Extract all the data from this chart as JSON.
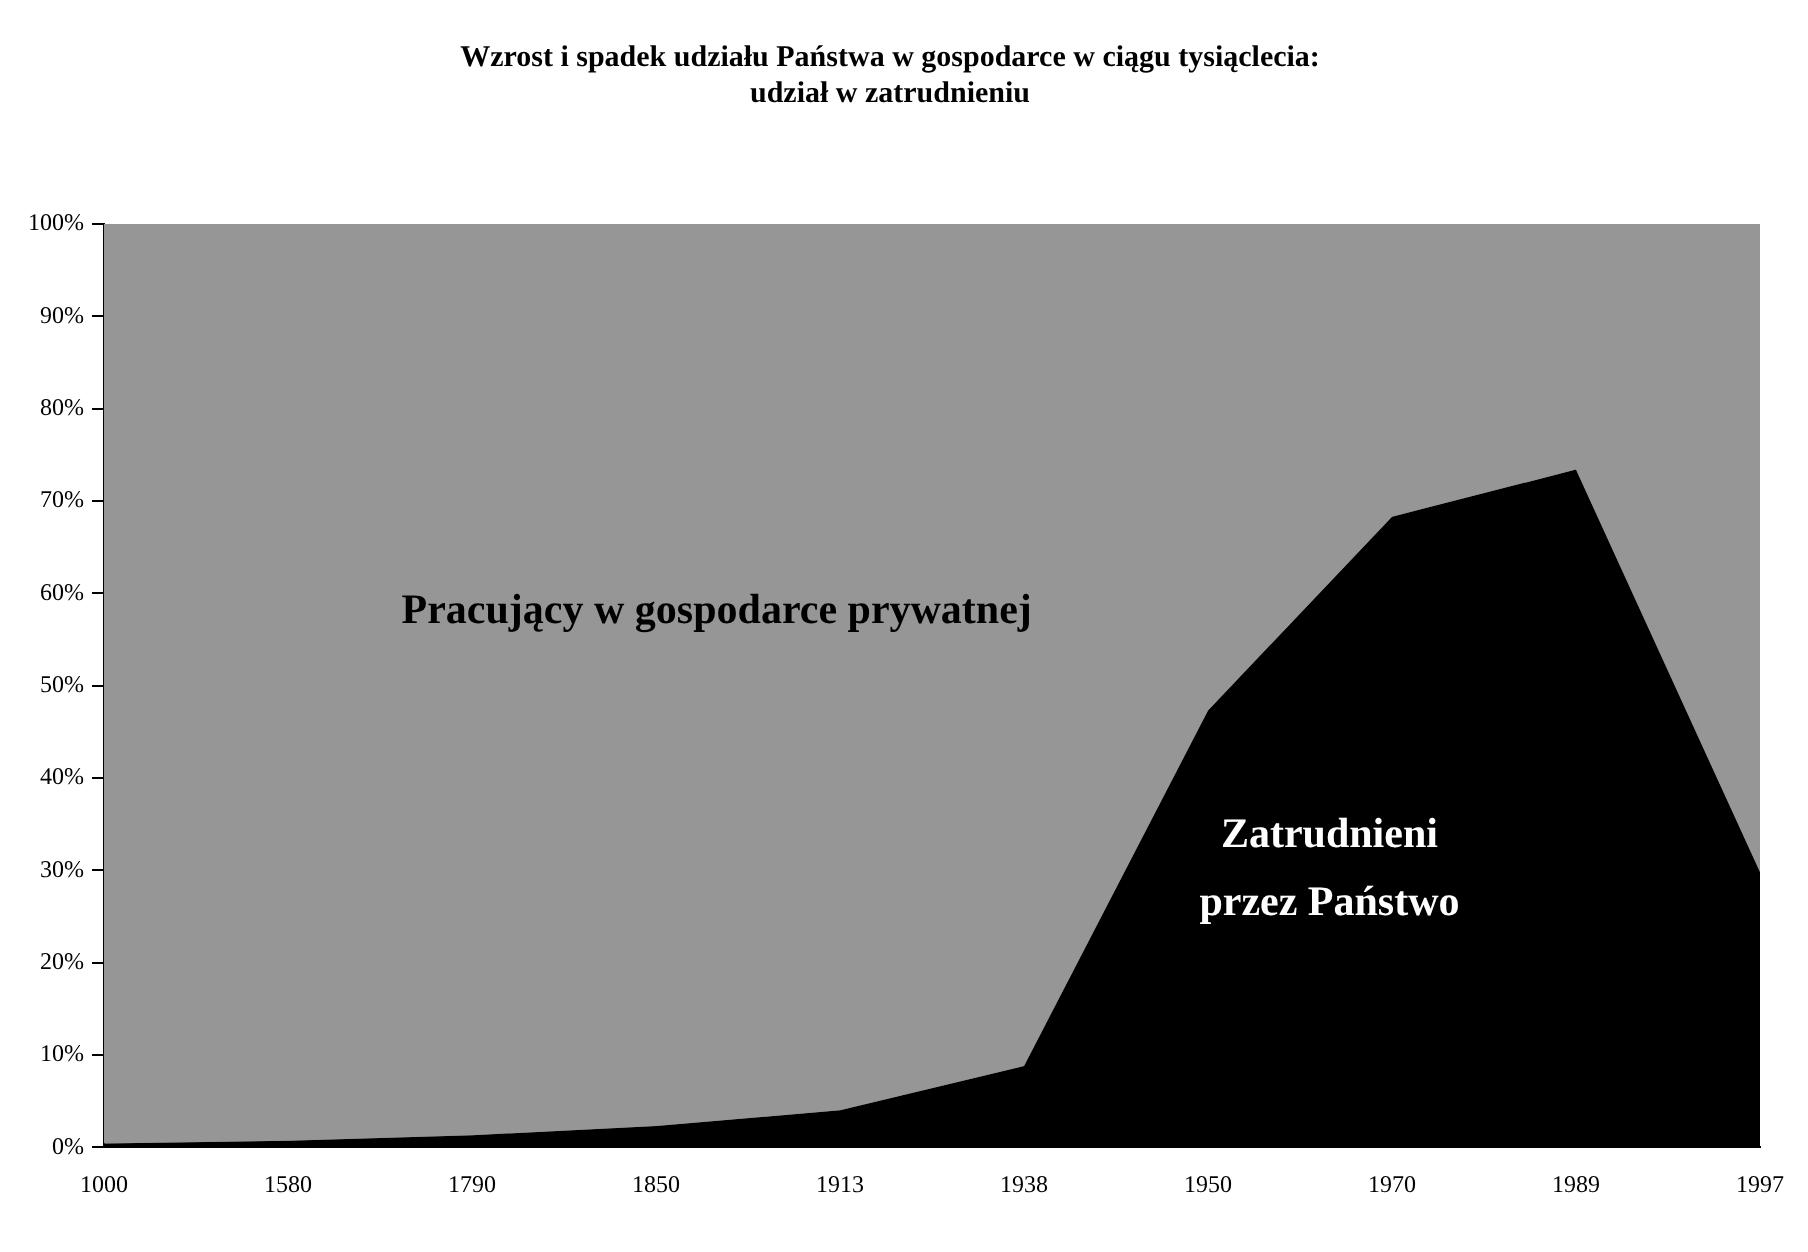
{
  "chart_data": {
    "type": "area",
    "title": "Wzrost i spadek udziału Państwa w gospodarce w ciągu tysiąclecia:\nudział w zatrudnieniu",
    "categories": [
      "1000",
      "1580",
      "1790",
      "1850",
      "1913",
      "1938",
      "1950",
      "1970",
      "1989",
      "1997"
    ],
    "stacked": true,
    "series": [
      {
        "name": "Zatrudnieni\nprzez Państwo",
        "color": "#000000",
        "values": [
          0.4,
          0.7,
          1.3,
          2.3,
          4.0,
          8.8,
          47.3,
          68.3,
          73.4,
          29.8
        ]
      },
      {
        "name": "Pracujący w gospodarce prywatnej",
        "color": "#969696",
        "values": [
          99.6,
          99.3,
          98.7,
          97.7,
          96.0,
          91.2,
          52.7,
          31.7,
          26.6,
          70.2
        ]
      }
    ],
    "ylim": [
      0,
      100
    ],
    "yticks": [
      {
        "value": 0,
        "label": "0%"
      },
      {
        "value": 10,
        "label": "10%"
      },
      {
        "value": 20,
        "label": "20%"
      },
      {
        "value": 30,
        "label": "30%"
      },
      {
        "value": 40,
        "label": "40%"
      },
      {
        "value": 50,
        "label": "50%"
      },
      {
        "value": 60,
        "label": "60%"
      },
      {
        "value": 70,
        "label": "70%"
      },
      {
        "value": 80,
        "label": "80%"
      },
      {
        "value": 90,
        "label": "90%"
      },
      {
        "value": 100,
        "label": "100%"
      }
    ],
    "grid": false,
    "legend": false
  }
}
